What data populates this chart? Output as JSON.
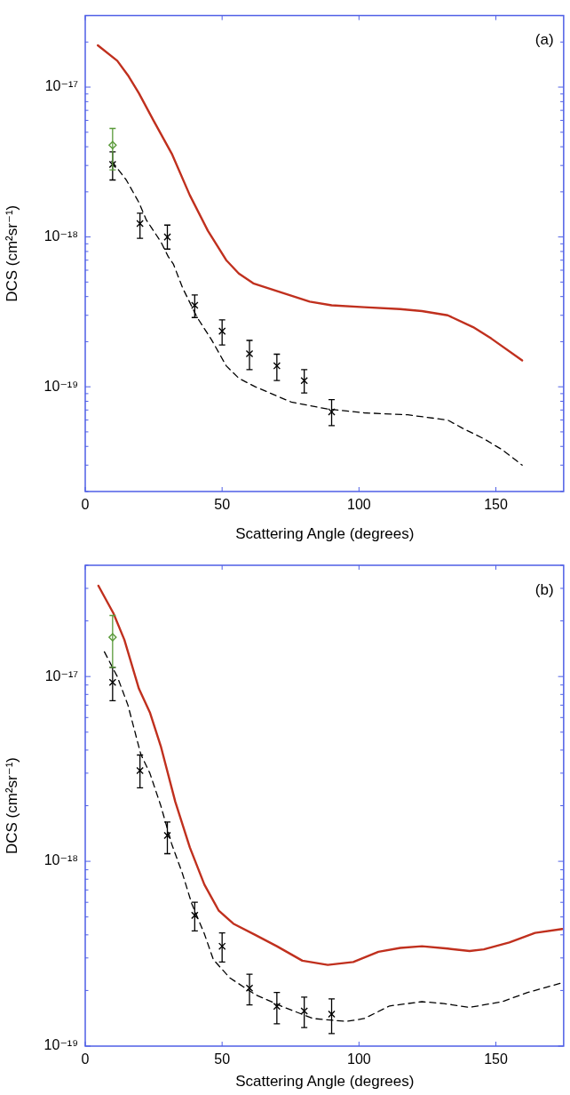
{
  "chart_data": [
    {
      "type": "line",
      "annotations": [
        "(a)"
      ],
      "xlabel": "Scattering Angle (degrees)",
      "ylabel": "DCS (cm²sr⁻¹)",
      "log": "y",
      "xlim": [
        0,
        175
      ],
      "xticks": [
        0,
        50,
        100,
        150
      ],
      "ylim": [
        2e-20,
        3e-17
      ],
      "yticks": [
        {
          "value": 2e-20,
          "label": null
        },
        {
          "value": 3e-20,
          "label": null
        },
        {
          "value": 4e-20,
          "label": null
        },
        {
          "value": 5e-20,
          "label": null
        },
        {
          "value": 6e-20,
          "label": null
        },
        {
          "value": 7e-20,
          "label": null
        },
        {
          "value": 8e-20,
          "label": null
        },
        {
          "value": 9e-20,
          "label": null
        },
        {
          "value": 1e-19,
          "label": "10⁻¹⁹"
        },
        {
          "value": 2e-19,
          "label": null
        },
        {
          "value": 3e-19,
          "label": null
        },
        {
          "value": 4e-19,
          "label": null
        },
        {
          "value": 5e-19,
          "label": null
        },
        {
          "value": 6e-19,
          "label": null
        },
        {
          "value": 7e-19,
          "label": null
        },
        {
          "value": 8e-19,
          "label": null
        },
        {
          "value": 9e-19,
          "label": null
        },
        {
          "value": 1e-18,
          "label": "10⁻¹⁸"
        },
        {
          "value": 2e-18,
          "label": null
        },
        {
          "value": 3e-18,
          "label": null
        },
        {
          "value": 4e-18,
          "label": null
        },
        {
          "value": 5e-18,
          "label": null
        },
        {
          "value": 6e-18,
          "label": null
        },
        {
          "value": 7e-18,
          "label": null
        },
        {
          "value": 8e-18,
          "label": null
        },
        {
          "value": 9e-18,
          "label": null
        },
        {
          "value": 1e-17,
          "label": "10⁻¹⁷"
        },
        {
          "value": 2e-17,
          "label": null
        },
        {
          "value": 3e-17,
          "label": null
        }
      ],
      "series": [
        {
          "color": "#c0301e",
          "line_style": "solid",
          "x": [
            4.6,
            11.7,
            15.6,
            19.6,
            24.9,
            31.6,
            38.2,
            44.8,
            51.5,
            56.1,
            61.4,
            72.7,
            82,
            90,
            101.9,
            115,
            123,
            132.4,
            141.7,
            148.3,
            159.6
          ],
          "values": [
            1.9e-17,
            1.5e-17,
            1.2e-17,
            9.1e-18,
            6e-18,
            3.6e-18,
            1.9e-18,
            1.1e-18,
            7e-19,
            5.7e-19,
            4.9e-19,
            4.2e-19,
            3.7e-19,
            3.5e-19,
            3.4e-19,
            3.3e-19,
            3.2e-19,
            3e-19,
            2.5e-19,
            2.1e-19,
            1.5e-19
          ]
        },
        {
          "color": "#000000",
          "line_style": "dashed",
          "x": [
            9.7,
            15,
            19.6,
            22.3,
            27.6,
            30.3,
            32.2,
            35.5,
            40.9,
            46.2,
            51.5,
            56.1,
            62.1,
            75.3,
            88.6,
            101.9,
            117.8,
            132.4,
            137.7,
            145.6,
            152.3,
            159.6
          ],
          "values": [
            3.2e-18,
            2.4e-18,
            1.7e-18,
            1.3e-18,
            9.3e-19,
            7.4e-19,
            6.6e-19,
            4.6e-19,
            2.9e-19,
            2.05e-19,
            1.38e-19,
            1.14e-19,
            1e-19,
            7.9e-20,
            7.1e-20,
            6.7e-20,
            6.5e-20,
            6e-20,
            5.3e-20,
            4.5e-20,
            3.8e-20,
            3e-20
          ]
        },
        {
          "type": "scatter",
          "color": "#000000",
          "marker": "cross",
          "x": [
            10,
            20,
            30,
            40,
            50,
            60,
            70,
            80,
            90
          ],
          "values": [
            3.05e-18,
            1.23e-18,
            1e-18,
            3.5e-19,
            2.35e-19,
            1.66e-19,
            1.38e-19,
            1.1e-19,
            6.8e-20
          ],
          "errors": [
            [
              2.4e-18,
              3.7e-18
            ],
            [
              9.8e-19,
              1.44e-18
            ],
            [
              8.3e-19,
              1.2e-18
            ],
            [
              2.9e-19,
              4.1e-19
            ],
            [
              1.9e-19,
              2.8e-19
            ],
            [
              1.3e-19,
              2.04e-19
            ],
            [
              1.1e-19,
              1.65e-19
            ],
            [
              9.1e-20,
              1.3e-19
            ],
            [
              5.5e-20,
              8.2e-20
            ]
          ]
        },
        {
          "type": "scatter",
          "color": "#5a9a3a",
          "marker": "diamond",
          "x": [
            10
          ],
          "values": [
            4.1e-18
          ],
          "errors": [
            [
              2.8e-18,
              5.3e-18
            ]
          ]
        }
      ]
    },
    {
      "type": "line",
      "annotations": [
        "(b)"
      ],
      "xlabel": "Scattering Angle (degrees)",
      "ylabel": "DCS (cm²sr⁻¹)",
      "log": "y",
      "xlim": [
        0,
        175
      ],
      "xticks": [
        0,
        50,
        100,
        150
      ],
      "ylim": [
        1e-19,
        4e-17
      ],
      "yticks": [
        {
          "value": 1e-19,
          "label": "10⁻¹⁹"
        },
        {
          "value": 2e-19,
          "label": null
        },
        {
          "value": 3e-19,
          "label": null
        },
        {
          "value": 4e-19,
          "label": null
        },
        {
          "value": 5e-19,
          "label": null
        },
        {
          "value": 6e-19,
          "label": null
        },
        {
          "value": 7e-19,
          "label": null
        },
        {
          "value": 8e-19,
          "label": null
        },
        {
          "value": 9e-19,
          "label": null
        },
        {
          "value": 1e-18,
          "label": "10⁻¹⁸"
        },
        {
          "value": 2e-18,
          "label": null
        },
        {
          "value": 3e-18,
          "label": null
        },
        {
          "value": 4e-18,
          "label": null
        },
        {
          "value": 5e-18,
          "label": null
        },
        {
          "value": 6e-18,
          "label": null
        },
        {
          "value": 7e-18,
          "label": null
        },
        {
          "value": 8e-18,
          "label": null
        },
        {
          "value": 9e-18,
          "label": null
        },
        {
          "value": 1e-17,
          "label": "10⁻¹⁷"
        },
        {
          "value": 2e-17,
          "label": null
        },
        {
          "value": 3e-17,
          "label": null
        },
        {
          "value": 4e-17,
          "label": null
        }
      ],
      "series": [
        {
          "color": "#c0301e",
          "line_style": "solid",
          "x": [
            4.8,
            10.3,
            14.3,
            19.6,
            23.6,
            27.6,
            32.9,
            38.2,
            43.5,
            48.8,
            54.1,
            62.1,
            70,
            79.3,
            88.6,
            97.9,
            107.1,
            115.1,
            123,
            132.4,
            140.4,
            145.6,
            154.9,
            164.3,
            174.2
          ],
          "values": [
            3.1e-17,
            2.2e-17,
            1.58e-17,
            8.6e-18,
            6.4e-18,
            4.2e-18,
            2.1e-18,
            1.19e-18,
            7.5e-19,
            5.4e-19,
            4.6e-19,
            4e-19,
            3.47e-19,
            2.9e-19,
            2.75e-19,
            2.85e-19,
            3.24e-19,
            3.4e-19,
            3.47e-19,
            3.37e-19,
            3.27e-19,
            3.34e-19,
            3.64e-19,
            4.1e-19,
            4.3e-19
          ]
        },
        {
          "color": "#000000",
          "line_style": "dashed",
          "x": [
            7,
            11.7,
            15.6,
            20.3,
            23.6,
            27.6,
            31.6,
            35.5,
            38.9,
            43.5,
            46.8,
            52.8,
            62.1,
            72.7,
            83.3,
            95.3,
            101.9,
            111.2,
            123,
            131,
            140.4,
            152.3,
            161.6,
            174.2
          ],
          "values": [
            1.36e-17,
            1e-17,
            7e-18,
            3.8e-18,
            3e-18,
            2e-18,
            1.24e-18,
            8.6e-19,
            5.9e-19,
            4.06e-19,
            2.94e-19,
            2.34e-19,
            1.9e-19,
            1.62e-19,
            1.41e-19,
            1.36e-19,
            1.41e-19,
            1.65e-19,
            1.74e-19,
            1.7e-19,
            1.62e-19,
            1.74e-19,
            1.95e-19,
            2.2e-19
          ]
        },
        {
          "type": "scatter",
          "color": "#000000",
          "marker": "cross",
          "x": [
            10,
            20,
            30,
            40,
            50,
            60,
            70,
            80,
            90
          ],
          "values": [
            9.3e-18,
            3.1e-18,
            1.38e-18,
            5.1e-19,
            3.47e-19,
            2.06e-19,
            1.64e-19,
            1.55e-19,
            1.49e-19
          ],
          "errors": [
            [
              7.4e-18,
              1.12e-17
            ],
            [
              2.5e-18,
              3.76e-18
            ],
            [
              1.1e-18,
              1.63e-18
            ],
            [
              4.2e-19,
              6e-19
            ],
            [
              2.85e-19,
              4.1e-19
            ],
            [
              1.67e-19,
              2.45e-19
            ],
            [
              1.32e-19,
              1.95e-19
            ],
            [
              1.26e-19,
              1.84e-19
            ],
            [
              1.17e-19,
              1.8e-19
            ]
          ]
        },
        {
          "type": "scatter",
          "color": "#5a9a3a",
          "marker": "diamond",
          "x": [
            10
          ],
          "values": [
            1.63e-17
          ],
          "errors": [
            [
              1.12e-17,
              2.14e-17
            ]
          ]
        }
      ]
    }
  ]
}
